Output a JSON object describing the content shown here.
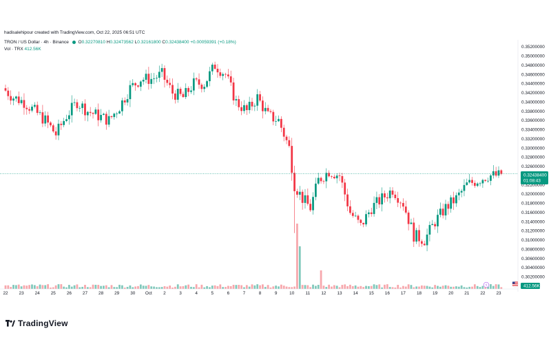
{
  "caption": "hadisalehipour created with TradingView.com, Oct 22, 2025 06:51 UTC",
  "legend": {
    "symbol": "TRON / US Dollar · 4h · Binance",
    "open_label": "O",
    "open": "0.32270810",
    "high_label": "H",
    "high": "0.32473562",
    "low_label": "L",
    "low": "0.32161800",
    "close_label": "C",
    "close": "0.32438400",
    "change": "+0.00059391 (+0.18%)",
    "vol_label": "Vol · TRX",
    "vol_value": "412.56K"
  },
  "brand": "TradingView",
  "icons": {
    "logo": "tradingview-logo-icon",
    "flag": "us-flag-icon",
    "event": "lightning-icon"
  },
  "colors": {
    "up": "#089981",
    "down": "#f23645",
    "vol_up": "#80c8bb",
    "vol_down": "#f7a7ac",
    "last_price": "#089981"
  },
  "chart_data": {
    "type": "candlestick",
    "title": "",
    "y_axis": {
      "range": [
        0.3016,
        0.3535
      ],
      "ticks": [
        "0.35200000",
        "0.35000000",
        "0.34800000",
        "0.34600000",
        "0.34400000",
        "0.34200000",
        "0.34000000",
        "0.33800000",
        "0.33600000",
        "0.33400000",
        "0.33200000",
        "0.33000000",
        "0.32800000",
        "0.32600000",
        "0.32400000",
        "0.32200000",
        "0.32000000",
        "0.31800000",
        "0.31600000",
        "0.31400000",
        "0.31200000",
        "0.31000000",
        "0.30800000",
        "0.30600000",
        "0.30400000",
        "0.30200000"
      ],
      "tick_values": [
        0.352,
        0.35,
        0.348,
        0.346,
        0.344,
        0.342,
        0.34,
        0.338,
        0.336,
        0.334,
        0.332,
        0.33,
        0.328,
        0.326,
        0.324,
        0.322,
        0.32,
        0.318,
        0.316,
        0.314,
        0.312,
        0.31,
        0.308,
        0.306,
        0.304,
        0.302
      ]
    },
    "x_axis": {
      "labels": [
        "22",
        "23",
        "24",
        "25",
        "26",
        "27",
        "28",
        "29",
        "30",
        "Oct",
        "2",
        "3",
        "4",
        "5",
        "6",
        "7",
        "8",
        "9",
        "10",
        "11",
        "12",
        "13",
        "14",
        "15",
        "16",
        "17",
        "18",
        "19",
        "20",
        "21",
        "22",
        "23"
      ],
      "label_day_index": [
        0,
        1,
        2,
        3,
        4,
        5,
        6,
        7,
        8,
        9,
        10,
        11,
        12,
        13,
        14,
        15,
        16,
        17,
        18,
        19,
        20,
        21,
        22,
        23,
        24,
        25,
        26,
        27,
        28,
        29,
        30,
        31
      ],
      "bars_per_day": 6
    },
    "last_price": {
      "value": 0.324384,
      "label": "0.32438400",
      "countdown": "01:08:43"
    },
    "volume_label": "412.56K",
    "close_path": [
      [
        0,
        0.343
      ],
      [
        4,
        0.341
      ],
      [
        8,
        0.34
      ],
      [
        12,
        0.338
      ],
      [
        16,
        0.336
      ],
      [
        20,
        0.333
      ],
      [
        24,
        0.337
      ],
      [
        28,
        0.34
      ],
      [
        32,
        0.338
      ],
      [
        36,
        0.337
      ],
      [
        40,
        0.336
      ],
      [
        44,
        0.339
      ],
      [
        48,
        0.343
      ],
      [
        52,
        0.345
      ],
      [
        56,
        0.345
      ],
      [
        60,
        0.346
      ],
      [
        64,
        0.342
      ],
      [
        68,
        0.341
      ],
      [
        72,
        0.344
      ],
      [
        76,
        0.344
      ],
      [
        80,
        0.348
      ],
      [
        84,
        0.346
      ],
      [
        88,
        0.34
      ],
      [
        92,
        0.338
      ],
      [
        96,
        0.341
      ],
      [
        100,
        0.337
      ],
      [
        104,
        0.336
      ],
      [
        108,
        0.33
      ],
      [
        110,
        0.322
      ],
      [
        113,
        0.319
      ],
      [
        116,
        0.317
      ],
      [
        119,
        0.323
      ],
      [
        123,
        0.325
      ],
      [
        127,
        0.324
      ],
      [
        131,
        0.316
      ],
      [
        135,
        0.313
      ],
      [
        139,
        0.317
      ],
      [
        143,
        0.319
      ],
      [
        147,
        0.321
      ],
      [
        151,
        0.318
      ],
      [
        155,
        0.311
      ],
      [
        159,
        0.31
      ],
      [
        163,
        0.314
      ],
      [
        167,
        0.317
      ],
      [
        171,
        0.319
      ],
      [
        175,
        0.322
      ],
      [
        179,
        0.323
      ],
      [
        183,
        0.324
      ]
    ],
    "volume_spikes": [
      {
        "bar": 110,
        "volume": 95,
        "dir": "down"
      },
      {
        "bar": 111,
        "volume": 62,
        "dir": "down"
      },
      {
        "bar": 119,
        "volume": 27,
        "dir": "down"
      }
    ]
  }
}
